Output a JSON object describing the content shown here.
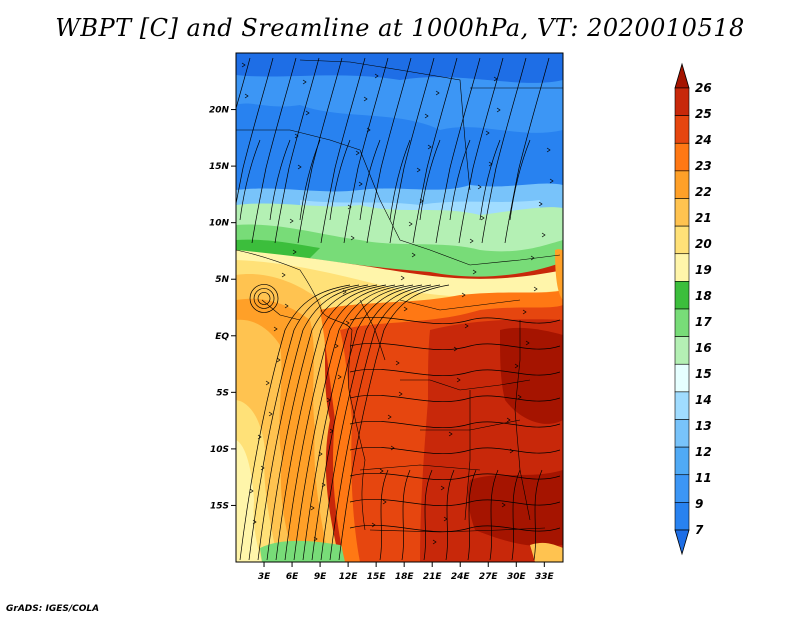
{
  "title": "WBPT [C] and Sreamline at 1000hPa, VT: 2020010518",
  "credit": "GrADS: IGES/COLA",
  "map": {
    "lon_range": [
      0,
      35
    ],
    "lat_range": [
      -20,
      25
    ],
    "lon_ticks": [
      "3E",
      "6E",
      "9E",
      "12E",
      "15E",
      "18E",
      "21E",
      "24E",
      "27E",
      "30E",
      "33E"
    ],
    "lon_tick_values": [
      3,
      6,
      9,
      12,
      15,
      18,
      21,
      24,
      27,
      30,
      33
    ],
    "lat_ticks": [
      "20N",
      "15N",
      "10N",
      "5N",
      "EQ",
      "5S",
      "10S",
      "15S"
    ],
    "lat_tick_values": [
      20,
      15,
      10,
      5,
      0,
      -5,
      -10,
      -15
    ],
    "overlay": "streamlines"
  },
  "colorbar": {
    "labels": [
      "7",
      "9",
      "11",
      "12",
      "13",
      "14",
      "15",
      "16",
      "17",
      "18",
      "19",
      "20",
      "21",
      "22",
      "23",
      "24",
      "25",
      "26"
    ],
    "colors": [
      "#1e6ee6",
      "#2882f0",
      "#3c96f5",
      "#50aaf5",
      "#78c3fa",
      "#a0dcff",
      "#e6ffff",
      "#b4f0b4",
      "#78dc78",
      "#3cbe3c",
      "#fff5aa",
      "#ffe178",
      "#ffc350",
      "#ffa028",
      "#ff7814",
      "#e6460f",
      "#c8280a",
      "#a51400"
    ]
  }
}
